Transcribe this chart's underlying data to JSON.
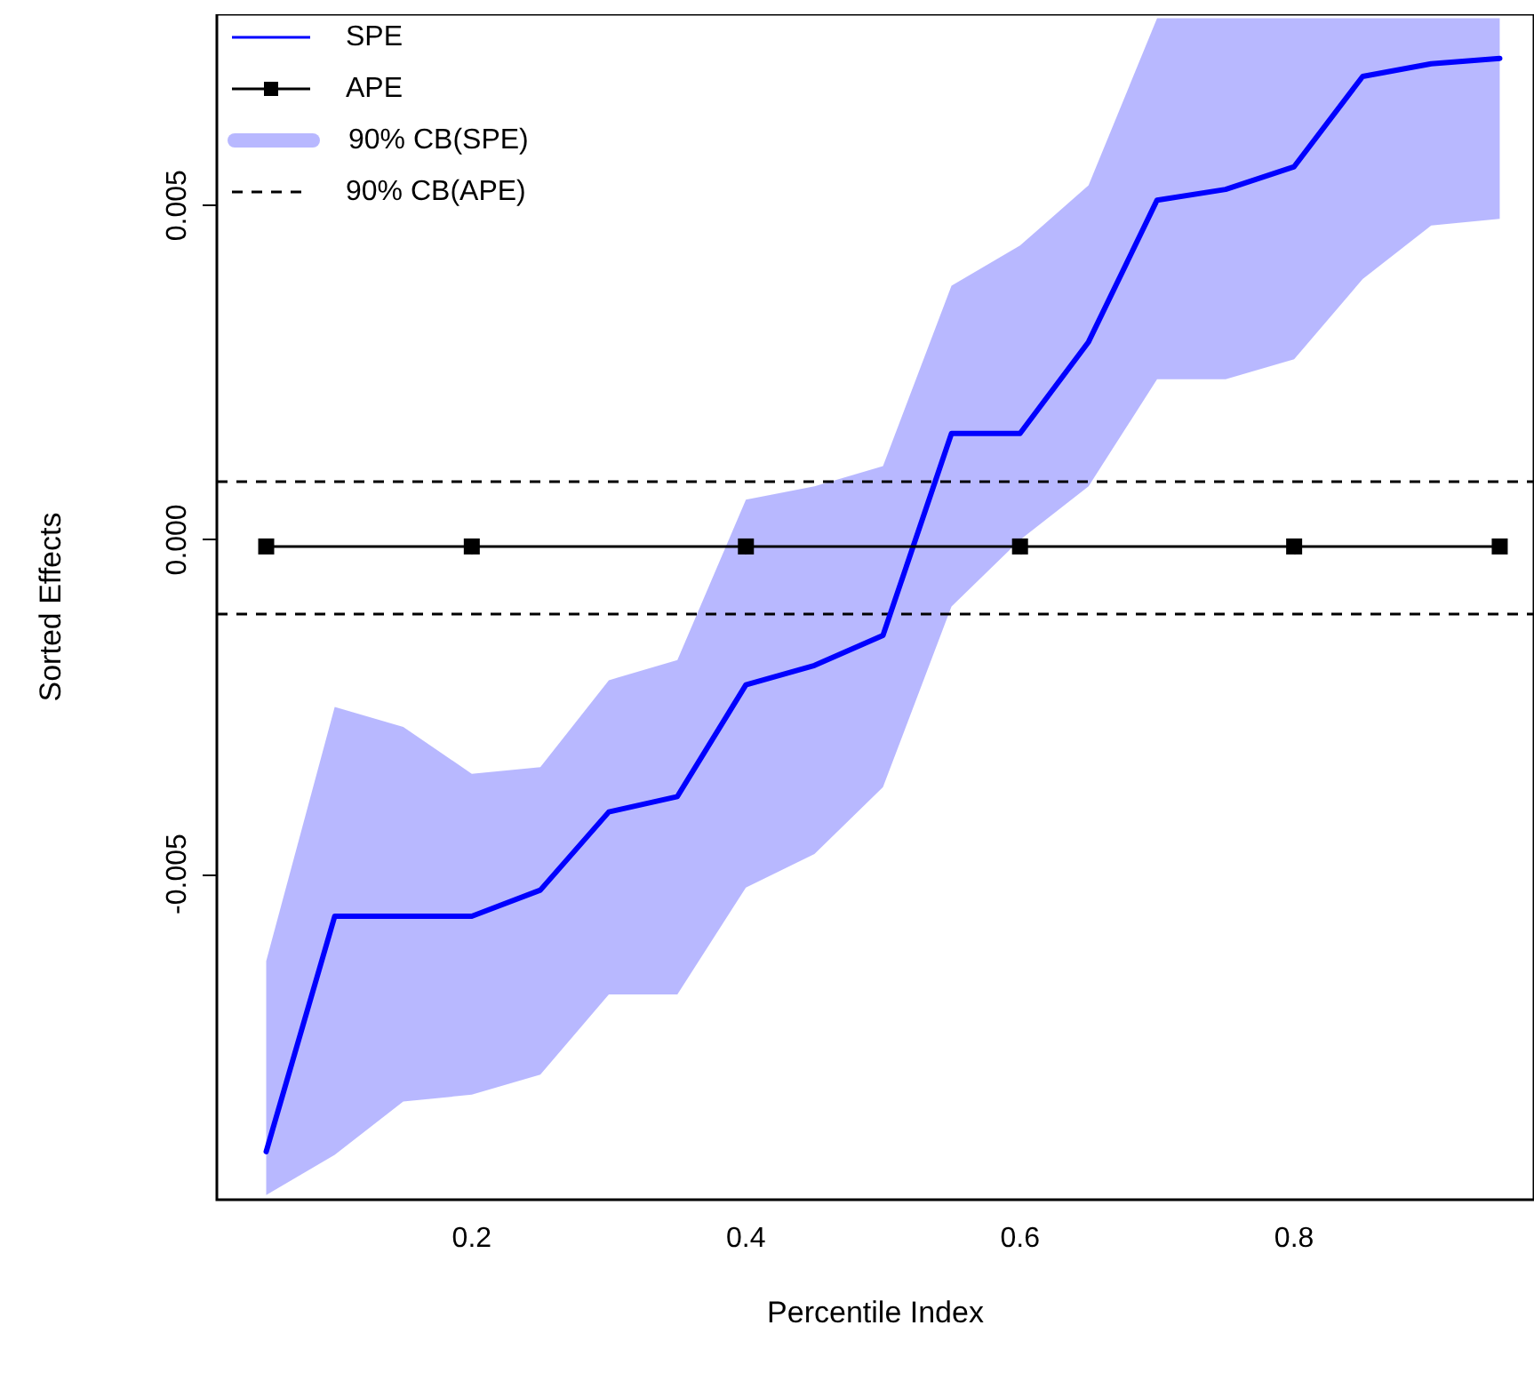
{
  "chart_data": {
    "type": "line",
    "xlabel": "Percentile Index",
    "ylabel": "Sorted Effects",
    "xlim": [
      0.014,
      0.975
    ],
    "ylim": [
      -0.00987,
      0.00786
    ],
    "xticks": [
      0.2,
      0.4,
      0.6,
      0.8
    ],
    "yticks": [
      -0.005,
      {
        "value": 0,
        "label": "0.000"
      },
      0.005
    ],
    "grid": false,
    "legend": "top left",
    "annotations": [
      "90% CB(SPE)"
    ],
    "series": [
      {
        "name": "SPE",
        "color": "#0000ff",
        "marker": "none",
        "x": [
          0.05,
          0.1,
          0.15,
          0.2,
          0.25,
          0.3,
          0.35,
          0.4,
          0.45,
          0.5,
          0.55,
          0.6,
          0.65,
          0.7,
          0.75,
          0.8,
          0.85,
          0.9,
          0.95
        ],
        "values": [
          -0.00915,
          -0.00563,
          -0.00563,
          -0.00563,
          -0.00524,
          -0.00407,
          -0.00384,
          -0.00217,
          -0.00188,
          -0.00143,
          0.00159,
          0.00159,
          0.00296,
          0.00508,
          0.00524,
          0.00558,
          0.00693,
          0.00712,
          0.0072
        ],
        "lower": [
          -0.0098,
          -0.0092,
          -0.0084,
          -0.0083,
          -0.008,
          -0.0068,
          -0.0068,
          -0.0052,
          -0.0047,
          -0.0037,
          -0.001,
          0,
          0.0008,
          0.0024,
          0.0024,
          0.0027,
          0.0039,
          0.0047,
          0.0048
        ],
        "upper": [
          -0.0063,
          -0.0025,
          -0.0028,
          -0.0035,
          -0.0034,
          -0.0021,
          -0.0018,
          0.0006,
          0.0008,
          0.0011,
          0.0038,
          0.0044,
          0.0053,
          0.0078,
          0.0078,
          0.0078,
          0.0078,
          0.0078,
          0.0078
        ]
      },
      {
        "name": "APE",
        "color": "#000000",
        "marker": "square",
        "x": [
          0.05,
          0.2,
          0.4,
          0.6,
          0.8,
          0.95
        ],
        "values": [
          -0.0001,
          -0.0001,
          -0.0001,
          -0.0001,
          -0.0001,
          -0.0001
        ]
      }
    ],
    "ref_lines": [
      {
        "axis": "y",
        "value": 0.00087,
        "label": "90% CB(APE)",
        "color": "#000000",
        "line_style": "dashed"
      },
      {
        "axis": "y",
        "value": -0.00111,
        "color": "#000000",
        "line_style": "dashed"
      }
    ]
  }
}
